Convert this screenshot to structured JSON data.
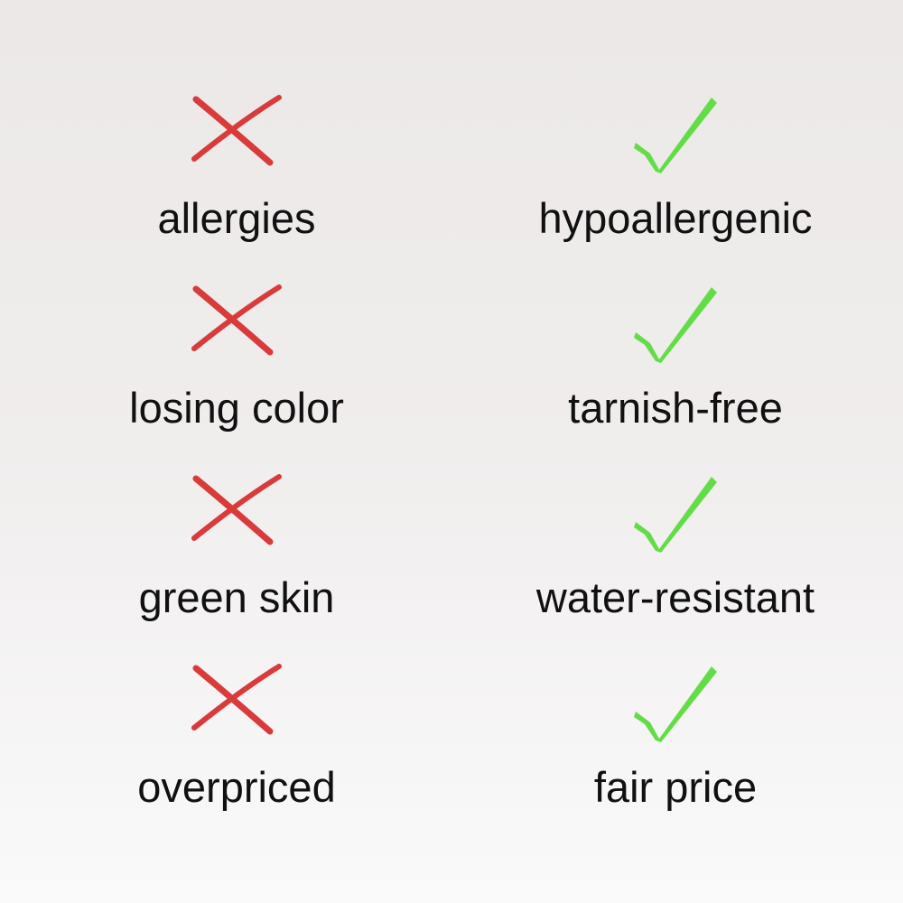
{
  "colors": {
    "cross": "#d93a3a",
    "check": "#63dd47",
    "text": "#111111"
  },
  "icons": {
    "left": "cross-icon",
    "right": "checkmark-icon"
  },
  "rows": [
    {
      "problem": "allergies",
      "benefit": "hypoallergenic"
    },
    {
      "problem": "losing color",
      "benefit": "tarnish-free"
    },
    {
      "problem": "green skin",
      "benefit": "water-resistant"
    },
    {
      "problem": "overpriced",
      "benefit": "fair price"
    }
  ]
}
